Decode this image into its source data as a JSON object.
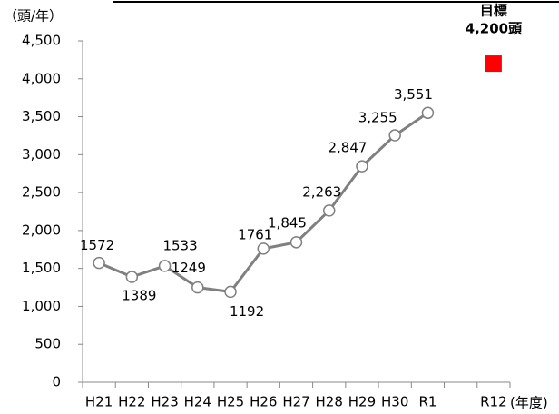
{
  "chart_data": {
    "type": "line",
    "y_label": "（頭/年）",
    "x_label": "(年度)",
    "categories": [
      "H21",
      "H22",
      "H23",
      "H24",
      "H25",
      "H26",
      "H27",
      "H28",
      "H29",
      "H30",
      "R1",
      null,
      "R12"
    ],
    "series": [
      {
        "color": "#808080",
        "marker": "circle",
        "values": [
          1572,
          1389,
          1533,
          1249,
          1192,
          1761,
          1845,
          2263,
          2847,
          3255,
          3551,
          null,
          null
        ],
        "value_labels": [
          "1572",
          "1389",
          "1533",
          "1249",
          "1192",
          "1761",
          "1,845",
          "2,263",
          "2,847",
          "3,255",
          "3,551",
          null,
          null
        ]
      },
      {
        "color": "#ff0000",
        "marker": "square",
        "annotation": "目標",
        "values": [
          null,
          null,
          null,
          null,
          null,
          null,
          null,
          null,
          null,
          null,
          null,
          null,
          4200
        ],
        "value_labels": [
          null,
          null,
          null,
          null,
          null,
          null,
          null,
          null,
          null,
          null,
          null,
          null,
          "4,200頭"
        ]
      }
    ],
    "ylim": [
      0,
      4500
    ],
    "yticks": [
      0,
      500,
      {
        "value": 1000,
        "label": "1,000"
      },
      {
        "value": 1500,
        "label": "1,500"
      },
      {
        "value": 2000,
        "label": "2,000"
      },
      {
        "value": 2500,
        "label": "2,500"
      },
      {
        "value": 3000,
        "label": "3,000"
      },
      {
        "value": 3500,
        "label": "3,500"
      },
      {
        "value": 4000,
        "label": "4,000"
      },
      {
        "value": 4500,
        "label": "4,500"
      }
    ],
    "grid": false
  }
}
